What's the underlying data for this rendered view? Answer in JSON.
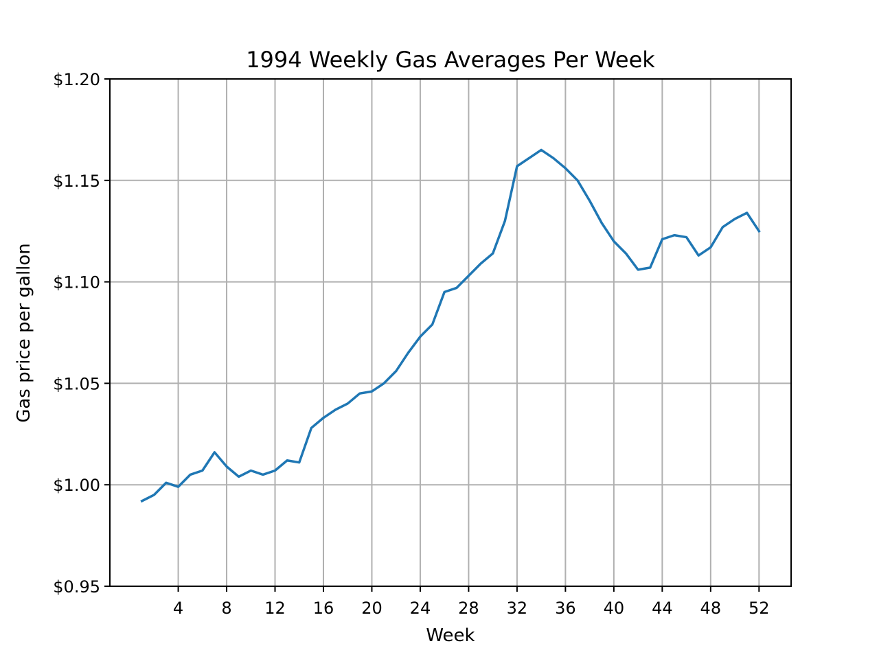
{
  "chart_data": {
    "type": "line",
    "title": "1994 Weekly Gas Averages Per Week",
    "xlabel": "Week",
    "ylabel": "Gas price per gallon",
    "x": [
      1,
      2,
      3,
      4,
      5,
      6,
      7,
      8,
      9,
      10,
      11,
      12,
      13,
      14,
      15,
      16,
      17,
      18,
      19,
      20,
      21,
      22,
      23,
      24,
      25,
      26,
      27,
      28,
      29,
      30,
      31,
      32,
      33,
      34,
      35,
      36,
      37,
      38,
      39,
      40,
      41,
      42,
      43,
      44,
      45,
      46,
      47,
      48,
      49,
      50,
      51,
      52
    ],
    "series": [
      {
        "color": "#1f77b4",
        "values": [
          0.992,
          0.995,
          1.001,
          0.999,
          1.005,
          1.007,
          1.016,
          1.009,
          1.004,
          1.007,
          1.005,
          1.007,
          1.012,
          1.011,
          1.028,
          1.033,
          1.037,
          1.04,
          1.045,
          1.046,
          1.05,
          1.056,
          1.065,
          1.073,
          1.079,
          1.095,
          1.097,
          1.103,
          1.109,
          1.114,
          1.13,
          1.157,
          1.161,
          1.165,
          1.161,
          1.156,
          1.15,
          1.14,
          1.129,
          1.12,
          1.114,
          1.106,
          1.107,
          1.121,
          1.123,
          1.122,
          1.113,
          1.117,
          1.127,
          1.131,
          1.134,
          1.125
        ]
      }
    ],
    "xlim": [
      -1.65,
      54.65
    ],
    "ylim": [
      0.95,
      1.2
    ],
    "xticks": [
      4,
      8,
      12,
      16,
      20,
      24,
      28,
      32,
      36,
      40,
      44,
      48,
      52
    ],
    "xtick_labels": [
      "4",
      "8",
      "12",
      "16",
      "20",
      "24",
      "28",
      "32",
      "36",
      "40",
      "44",
      "48",
      "52"
    ],
    "yticks": [
      0.95,
      1.0,
      1.05,
      1.1,
      1.15,
      1.2
    ],
    "ytick_labels": [
      "$0.95",
      "$1.00",
      "$1.05",
      "$1.10",
      "$1.15",
      "$1.20"
    ],
    "grid": true
  }
}
